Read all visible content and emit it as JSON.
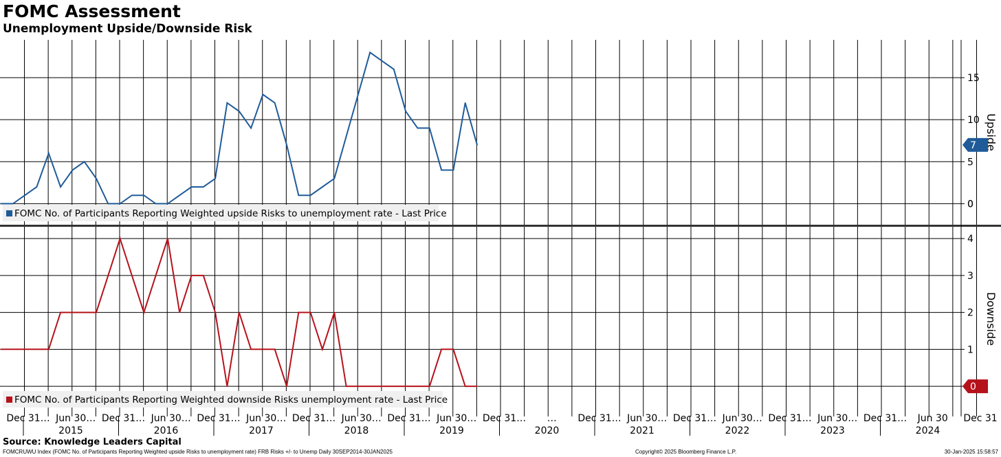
{
  "header": {
    "title": "FOMC Assessment",
    "subtitle": "Unemployment Upside/Downside Risk"
  },
  "footer": {
    "source": "Source: Knowledge Leaders Capital",
    "index_info": "FOMCRUWU Index (FOMC No. of Participants Reporting Weighted upside Risks to unemployment rate) FRB Risks +/- to Unemp  Daily 30SEP2014-30JAN2025",
    "copyright": "Copyright© 2025 Bloomberg Finance L.P.",
    "timestamp": "30-Jan-2025 15:58:57"
  },
  "chart_data": {
    "type": "line",
    "meetings_per_year": 8,
    "x_start": 2014.75,
    "x_end": 2025.08,
    "x_tick_labels": [
      "Dec 31…",
      "Jun 30…",
      "Dec 31…",
      "Jun 30…",
      "Dec 31…",
      "Jun 30…",
      "Dec 31…",
      "Jun 30…",
      "Dec 31…",
      "Jun 30…",
      "Dec 31…",
      "…",
      "Dec 31…",
      "Jun 30…",
      "Dec 31…",
      "Jun 30…",
      "Dec 31…",
      "Jun 30…",
      "Dec 31…",
      "Jun 30",
      "Dec 31"
    ],
    "x_year_labels": [
      "2015",
      "2016",
      "2017",
      "2018",
      "2019",
      "2020",
      "2021",
      "2022",
      "2023",
      "2024"
    ],
    "panels": [
      {
        "id": "upside",
        "axis_label": "Upside",
        "ylim": [
          -2.5,
          19.5
        ],
        "yticks": [
          0,
          5,
          10,
          15
        ],
        "last_value": "7",
        "color": "#1f5b99",
        "legend": "FOMC No. of Participants Reporting Weighted upside Risks to unemployment rate - Last Price",
        "values": [
          0,
          0,
          1,
          2,
          6,
          2,
          4,
          5,
          3,
          0,
          0,
          1,
          1,
          0,
          0,
          1,
          2,
          2,
          3,
          12,
          11,
          9,
          13,
          12,
          7,
          1,
          1,
          2,
          3,
          8,
          13,
          18,
          17,
          16,
          11,
          9,
          9,
          4,
          4,
          12,
          7
        ]
      },
      {
        "id": "downside",
        "axis_label": "Downside",
        "ylim": [
          -0.65,
          4.3
        ],
        "yticks": [
          1,
          2,
          3,
          4
        ],
        "last_value": "0",
        "color": "#b5121b",
        "legend": "FOMC No. of Participants Reporting Weighted downside Risks unemployment rate - Last Price",
        "values": [
          1,
          1,
          1,
          1,
          1,
          2,
          2,
          2,
          2,
          3,
          4,
          3,
          2,
          3,
          4,
          2,
          3,
          3,
          2,
          0,
          2,
          1,
          1,
          1,
          0,
          2,
          2,
          1,
          2,
          0,
          0,
          0,
          0,
          0,
          0,
          0,
          0,
          1,
          1,
          0,
          0
        ]
      }
    ]
  }
}
